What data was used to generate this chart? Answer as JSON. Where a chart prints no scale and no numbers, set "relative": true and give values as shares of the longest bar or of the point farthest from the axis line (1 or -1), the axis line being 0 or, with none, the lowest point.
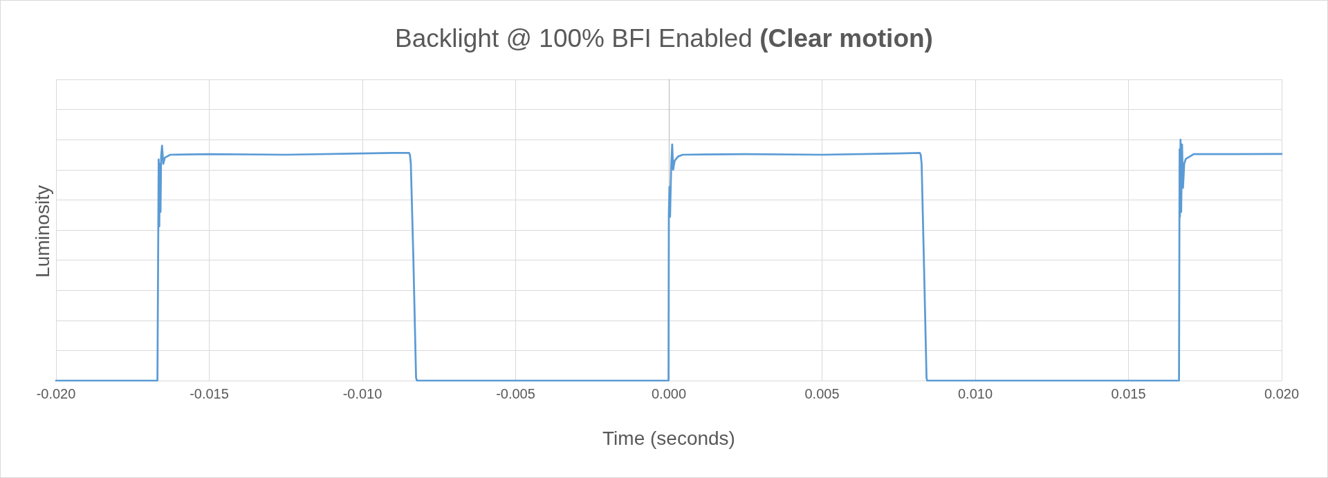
{
  "chart_data": {
    "type": "line",
    "title": "Backlight @ 100% BFI Enabled (Clear motion)",
    "xlabel": "Time (seconds)",
    "ylabel": "Luminosity",
    "relative": true,
    "color": "#5b9bd5",
    "marker": "none",
    "line_style": "solid",
    "grid": true,
    "xlim": [
      -0.02,
      0.02
    ],
    "xticks": [
      {
        "value": -0.02,
        "label": "-0.020"
      },
      {
        "value": -0.015,
        "label": "-0.015"
      },
      {
        "value": -0.01,
        "label": "-0.010"
      },
      {
        "value": -0.005,
        "label": "-0.005"
      },
      {
        "value": 0,
        "label": "0.000"
      },
      {
        "value": 0.005,
        "label": "0.005"
      },
      {
        "value": 0.01,
        "label": "0.010"
      },
      {
        "value": 0.015,
        "label": "0.015"
      },
      {
        "value": 0.02,
        "label": "0.020"
      }
    ],
    "x": [
      -0.02,
      -0.01669,
      -0.01665,
      -0.01663,
      -0.01661,
      -0.01659,
      -0.01657,
      -0.01654,
      -0.0165,
      -0.01645,
      -0.01638,
      -0.01627,
      -0.015,
      -0.0125,
      -0.01,
      -0.009,
      -0.00848,
      -0.00845,
      -0.00842,
      -0.00834,
      -0.00825,
      -0.00822,
      -1e-05,
      0,
      2e-05,
      4e-05,
      6e-05,
      8e-05,
      0.00011,
      0.00014,
      0.00019,
      0.0003,
      0.00045,
      0.0025,
      0.005,
      0.0075,
      0.00819,
      0.00822,
      0.00825,
      0.00832,
      0.00841,
      0.00843,
      0.01665,
      0.01667,
      0.01668,
      0.0167,
      0.01672,
      0.01675,
      0.01678,
      0.01682,
      0.01687,
      0.017,
      0.01713,
      0.0175,
      0.02
    ],
    "values": [
      0,
      0,
      0.918,
      0.64,
      0.9,
      0.7,
      0.93,
      0.975,
      0.9,
      0.925,
      0.93,
      0.9375,
      0.94,
      0.9375,
      0.943,
      0.945,
      0.945,
      0.9375,
      0.899,
      0.519,
      0.012,
      0,
      0,
      0.69,
      0.804,
      0.68,
      0.8,
      0.9,
      0.98,
      0.875,
      0.9125,
      0.93,
      0.9375,
      0.94,
      0.9375,
      0.943,
      0.945,
      0.9375,
      0.9,
      0.52,
      0.012,
      0,
      0,
      0.96,
      0.68,
      1,
      0.7,
      0.98,
      0.8,
      0.9,
      0.92,
      0.93,
      0.94,
      0.94,
      0.941
    ]
  }
}
